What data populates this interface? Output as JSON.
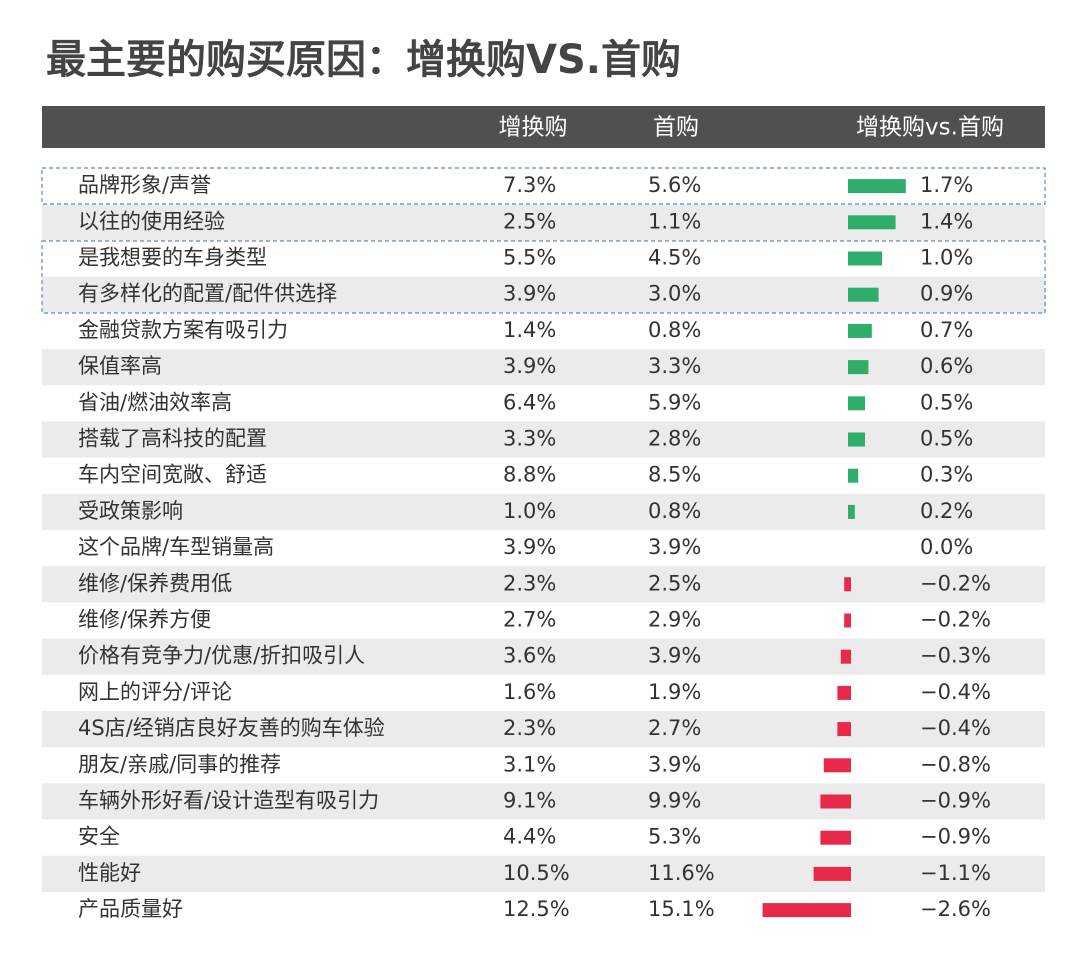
{
  "header": {
    "title": "最主要的购买原因：增换购VS.首购"
  },
  "table": {
    "columns": [
      "增换购",
      "首购",
      "增换购vs.首购"
    ],
    "colors": {
      "positive": "#2ead6b",
      "negative": "#e8294a"
    },
    "rows": [
      {
        "reason": "品牌形象/声誉",
        "repeat": "7.3%",
        "first": "5.6%",
        "diff": {
          "value": 1.7,
          "label": "1.7%"
        }
      },
      {
        "reason": "以往的使用经验",
        "repeat": "2.5%",
        "first": "1.1%",
        "diff": {
          "value": 1.4,
          "label": "1.4%"
        }
      },
      {
        "reason": "是我想要的车身类型",
        "repeat": "5.5%",
        "first": "4.5%",
        "diff": {
          "value": 1.0,
          "label": "1.0%"
        }
      },
      {
        "reason": "有多样化的配置/配件供选择",
        "repeat": "3.9%",
        "first": "3.0%",
        "diff": {
          "value": 0.9,
          "label": "0.9%"
        }
      },
      {
        "reason": "金融贷款方案有吸引力",
        "repeat": "1.4%",
        "first": "0.8%",
        "diff": {
          "value": 0.7,
          "label": "0.7%"
        }
      },
      {
        "reason": "保值率高",
        "repeat": "3.9%",
        "first": "3.3%",
        "diff": {
          "value": 0.6,
          "label": "0.6%"
        }
      },
      {
        "reason": "省油/燃油效率高",
        "repeat": "6.4%",
        "first": "5.9%",
        "diff": {
          "value": 0.5,
          "label": "0.5%"
        }
      },
      {
        "reason": "搭载了高科技的配置",
        "repeat": "3.3%",
        "first": "2.8%",
        "diff": {
          "value": 0.5,
          "label": "0.5%"
        }
      },
      {
        "reason": "车内空间宽敞、舒适",
        "repeat": "8.8%",
        "first": "8.5%",
        "diff": {
          "value": 0.3,
          "label": "0.3%"
        }
      },
      {
        "reason": "受政策影响",
        "repeat": "1.0%",
        "first": "0.8%",
        "diff": {
          "value": 0.2,
          "label": "0.2%"
        }
      },
      {
        "reason": "这个品牌/车型销量高",
        "repeat": "3.9%",
        "first": "3.9%",
        "diff": {
          "value": 0.0,
          "label": "0.0%"
        }
      },
      {
        "reason": "维修/保养费用低",
        "repeat": "2.3%",
        "first": "2.5%",
        "diff": {
          "value": -0.2,
          "label": "−0.2%"
        }
      },
      {
        "reason": "维修/保养方便",
        "repeat": "2.7%",
        "first": "2.9%",
        "diff": {
          "value": -0.2,
          "label": "−0.2%"
        }
      },
      {
        "reason": "价格有竞争力/优惠/折扣吸引人",
        "repeat": "3.6%",
        "first": "3.9%",
        "diff": {
          "value": -0.3,
          "label": "−0.3%"
        }
      },
      {
        "reason": "网上的评分/评论",
        "repeat": "1.6%",
        "first": "1.9%",
        "diff": {
          "value": -0.4,
          "label": "−0.4%"
        }
      },
      {
        "reason": "4S店/经销店良好友善的购车体验",
        "repeat": "2.3%",
        "first": "2.7%",
        "diff": {
          "value": -0.4,
          "label": "−0.4%"
        }
      },
      {
        "reason": "朋友/亲戚/同事的推荐",
        "repeat": "3.1%",
        "first": "3.9%",
        "diff": {
          "value": -0.8,
          "label": "−0.8%"
        }
      },
      {
        "reason": "车辆外形好看/设计造型有吸引力",
        "repeat": "9.1%",
        "first": "9.9%",
        "diff": {
          "value": -0.9,
          "label": "−0.9%"
        }
      },
      {
        "reason": "安全",
        "repeat": "4.4%",
        "first": "5.3%",
        "diff": {
          "value": -0.9,
          "label": "−0.9%"
        }
      },
      {
        "reason": "性能好",
        "repeat": "10.5%",
        "first": "11.6%",
        "diff": {
          "value": -1.1,
          "label": "−1.1%"
        }
      },
      {
        "reason": "产品质量好",
        "repeat": "12.5%",
        "first": "15.1%",
        "diff": {
          "value": -2.6,
          "label": "−2.6%"
        }
      }
    ]
  }
}
